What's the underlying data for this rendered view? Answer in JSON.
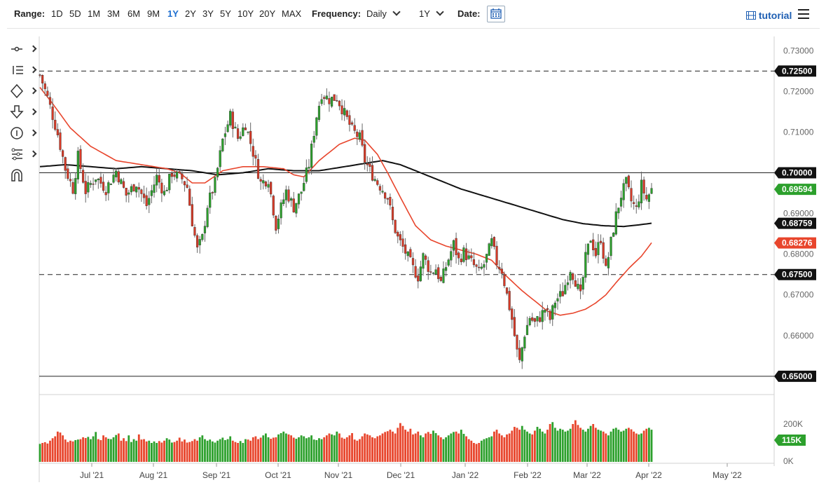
{
  "toolbar": {
    "range_label": "Range:",
    "ranges": [
      "1D",
      "5D",
      "1M",
      "3M",
      "6M",
      "9M",
      "1Y",
      "2Y",
      "3Y",
      "5Y",
      "10Y",
      "20Y",
      "MAX"
    ],
    "active_range": "1Y",
    "frequency_label": "Frequency:",
    "frequency_value": "Daily",
    "period_value": "1Y",
    "date_label": "Date:",
    "tutorial_label": "tutorial"
  },
  "tools": [
    "crosshair-tool",
    "line-tools",
    "shape-tools",
    "arrow-tool",
    "annotation-tool",
    "fibonacci-tool",
    "magnet-tool"
  ],
  "chart_data": {
    "type": "candlestick",
    "title": "",
    "ylim": [
      0.6455,
      0.7335
    ],
    "y_ticks": [
      "0.73000",
      "0.72000",
      "0.71000",
      "0.69000",
      "0.68000",
      "0.67000",
      "0.66000"
    ],
    "x_ticks": [
      "Jul '21",
      "Aug '21",
      "Sep '21",
      "Oct '21",
      "Nov '21",
      "Dec '21",
      "Jan '22",
      "Feb '22",
      "Mar '22",
      "Apr '22",
      "May '22"
    ],
    "horizontal_lines": [
      {
        "value": 0.725,
        "label": "0.72500",
        "style": "dashed"
      },
      {
        "value": 0.7,
        "label": "0.70000",
        "style": "solid"
      },
      {
        "value": 0.675,
        "label": "0.67500",
        "style": "dashed"
      },
      {
        "value": 0.65,
        "label": "0.65000",
        "style": "solid"
      }
    ],
    "last_price": {
      "value": 0.69594,
      "label": "0.69594",
      "color": "#2ca02c"
    },
    "sma200_last": {
      "value": 0.68759,
      "label": "0.68759",
      "color": "#111111"
    },
    "sma50_last": {
      "value": 0.68276,
      "label": "0.68276",
      "color": "#e8452c"
    },
    "price_path": [
      [
        0,
        0.724
      ],
      [
        3,
        0.7185
      ],
      [
        7,
        0.7095
      ],
      [
        10,
        0.701
      ],
      [
        13,
        0.696
      ],
      [
        15,
        0.704
      ],
      [
        18,
        0.6955
      ],
      [
        22,
        0.699
      ],
      [
        26,
        0.696
      ],
      [
        30,
        0.7005
      ],
      [
        34,
        0.6945
      ],
      [
        38,
        0.6975
      ],
      [
        42,
        0.692
      ],
      [
        46,
        0.699
      ],
      [
        49,
        0.695
      ],
      [
        52,
        0.7
      ],
      [
        56,
        0.6985
      ],
      [
        58,
        0.6965
      ],
      [
        60,
        0.688
      ],
      [
        62,
        0.681
      ],
      [
        64,
        0.684
      ],
      [
        66,
        0.692
      ],
      [
        69,
        0.6975
      ],
      [
        72,
        0.708
      ],
      [
        75,
        0.714
      ],
      [
        78,
        0.7085
      ],
      [
        81,
        0.712
      ],
      [
        84,
        0.705
      ],
      [
        87,
        0.6975
      ],
      [
        90,
        0.6985
      ],
      [
        93,
        0.687
      ],
      [
        95,
        0.6915
      ],
      [
        97,
        0.6955
      ],
      [
        100,
        0.6915
      ],
      [
        103,
        0.6955
      ],
      [
        106,
        0.702
      ],
      [
        109,
        0.714
      ],
      [
        111,
        0.7195
      ],
      [
        114,
        0.718
      ],
      [
        117,
        0.7185
      ],
      [
        120,
        0.7145
      ],
      [
        123,
        0.7105
      ],
      [
        126,
        0.7085
      ],
      [
        128,
        0.703
      ],
      [
        130,
        0.7005
      ],
      [
        133,
        0.6975
      ],
      [
        135,
        0.696
      ],
      [
        137,
        0.694
      ],
      [
        139,
        0.688
      ],
      [
        141,
        0.684
      ],
      [
        144,
        0.6805
      ],
      [
        147,
        0.6765
      ],
      [
        149,
        0.6745
      ],
      [
        151,
        0.6795
      ],
      [
        154,
        0.6755
      ],
      [
        156,
        0.6765
      ],
      [
        158,
        0.673
      ],
      [
        160,
        0.677
      ],
      [
        163,
        0.6825
      ],
      [
        165,
        0.6785
      ],
      [
        167,
        0.6805
      ],
      [
        170,
        0.678
      ],
      [
        173,
        0.6755
      ],
      [
        175,
        0.6775
      ],
      [
        178,
        0.683
      ],
      [
        180,
        0.678
      ],
      [
        182,
        0.676
      ],
      [
        184,
        0.67
      ],
      [
        186,
        0.664
      ],
      [
        188,
        0.656
      ],
      [
        189,
        0.6535
      ],
      [
        191,
        0.6605
      ],
      [
        193,
        0.6645
      ],
      [
        195,
        0.663
      ],
      [
        197,
        0.6645
      ],
      [
        199,
        0.6665
      ],
      [
        201,
        0.664
      ],
      [
        203,
        0.6685
      ],
      [
        206,
        0.6705
      ],
      [
        209,
        0.6765
      ],
      [
        211,
        0.6735
      ],
      [
        213,
        0.6695
      ],
      [
        215,
        0.679
      ],
      [
        217,
        0.684
      ],
      [
        219,
        0.68
      ],
      [
        221,
        0.684
      ],
      [
        223,
        0.676
      ],
      [
        225,
        0.683
      ],
      [
        227,
        0.6895
      ],
      [
        229,
        0.6945
      ],
      [
        231,
        0.6975
      ],
      [
        233,
        0.693
      ],
      [
        235,
        0.691
      ],
      [
        237,
        0.697
      ],
      [
        239,
        0.6935
      ],
      [
        241,
        0.6959
      ]
    ],
    "sma50_path": [
      [
        0,
        0.721
      ],
      [
        5,
        0.717
      ],
      [
        12,
        0.711
      ],
      [
        20,
        0.7065
      ],
      [
        30,
        0.703
      ],
      [
        40,
        0.702
      ],
      [
        50,
        0.701
      ],
      [
        55,
        0.7
      ],
      [
        60,
        0.6975
      ],
      [
        65,
        0.6975
      ],
      [
        72,
        0.7005
      ],
      [
        80,
        0.7015
      ],
      [
        88,
        0.7015
      ],
      [
        96,
        0.701
      ],
      [
        100,
        0.6995
      ],
      [
        104,
        0.699
      ],
      [
        110,
        0.703
      ],
      [
        118,
        0.707
      ],
      [
        124,
        0.7085
      ],
      [
        128,
        0.708
      ],
      [
        133,
        0.7045
      ],
      [
        137,
        0.7
      ],
      [
        142,
        0.694
      ],
      [
        148,
        0.687
      ],
      [
        154,
        0.6835
      ],
      [
        160,
        0.682
      ],
      [
        166,
        0.681
      ],
      [
        172,
        0.68
      ],
      [
        178,
        0.6785
      ],
      [
        184,
        0.6745
      ],
      [
        190,
        0.671
      ],
      [
        196,
        0.668
      ],
      [
        200,
        0.666
      ],
      [
        205,
        0.665
      ],
      [
        210,
        0.6655
      ],
      [
        215,
        0.6665
      ],
      [
        219,
        0.668
      ],
      [
        223,
        0.67
      ],
      [
        227,
        0.673
      ],
      [
        232,
        0.6765
      ],
      [
        237,
        0.6795
      ],
      [
        241,
        0.6828
      ]
    ],
    "sma200_path": [
      [
        0,
        0.7015
      ],
      [
        10,
        0.702
      ],
      [
        20,
        0.7015
      ],
      [
        30,
        0.701
      ],
      [
        40,
        0.7015
      ],
      [
        50,
        0.701
      ],
      [
        60,
        0.7005
      ],
      [
        70,
        0.6995
      ],
      [
        80,
        0.7
      ],
      [
        90,
        0.701
      ],
      [
        100,
        0.7005
      ],
      [
        110,
        0.7005
      ],
      [
        120,
        0.7015
      ],
      [
        130,
        0.7025
      ],
      [
        135,
        0.703
      ],
      [
        142,
        0.702
      ],
      [
        150,
        0.7
      ],
      [
        158,
        0.698
      ],
      [
        166,
        0.696
      ],
      [
        174,
        0.6945
      ],
      [
        182,
        0.693
      ],
      [
        190,
        0.6915
      ],
      [
        198,
        0.69
      ],
      [
        206,
        0.6885
      ],
      [
        214,
        0.6875
      ],
      [
        222,
        0.687
      ],
      [
        230,
        0.6868
      ],
      [
        236,
        0.6872
      ],
      [
        241,
        0.6876
      ]
    ],
    "volume": {
      "ylim": [
        0,
        300000
      ],
      "y_ticks": [
        "200K",
        "0K"
      ],
      "last_label": "115K",
      "last_value": 115000,
      "values": [
        95000,
        100000,
        104000,
        97000,
        112000,
        125000,
        135000,
        160000,
        155000,
        140000,
        118000,
        105000,
        112000,
        108000,
        115000,
        118000,
        120000,
        130000,
        126000,
        132000,
        120000,
        135000,
        158000,
        120000,
        115000,
        140000,
        130000,
        122000,
        120000,
        130000,
        142000,
        150000,
        112000,
        125000,
        110000,
        140000,
        105000,
        120000,
        112000,
        145000,
        118000,
        120000,
        108000,
        112000,
        100000,
        108000,
        100000,
        110000,
        102000,
        112000,
        125000,
        118000,
        102000,
        105000,
        112000,
        128000,
        108000,
        118000,
        102000,
        105000,
        110000,
        120000,
        112000,
        130000,
        140000,
        120000,
        112000,
        118000,
        108000,
        102000,
        112000,
        120000,
        128000,
        115000,
        120000,
        135000,
        112000,
        105000,
        100000,
        110000,
        100000,
        120000,
        118000,
        112000,
        130000,
        135000,
        120000,
        128000,
        140000,
        150000,
        130000,
        122000,
        128000,
        130000,
        145000,
        152000,
        160000,
        150000,
        145000,
        140000,
        128000,
        122000,
        130000,
        140000,
        135000,
        125000,
        130000,
        140000,
        118000,
        115000,
        125000,
        120000,
        130000,
        140000,
        150000,
        145000,
        140000,
        160000,
        150000,
        128000,
        122000,
        130000,
        140000,
        152000,
        118000,
        112000,
        120000,
        135000,
        150000,
        145000,
        140000,
        130000,
        125000,
        135000,
        140000,
        150000,
        158000,
        162000,
        170000,
        160000,
        150000,
        180000,
        205000,
        190000,
        170000,
        160000,
        175000,
        145000,
        150000,
        160000,
        140000,
        130000,
        150000,
        158000,
        148000,
        165000,
        152000,
        140000,
        130000,
        120000,
        130000,
        140000,
        150000,
        158000,
        160000,
        150000,
        170000,
        148000,
        135000,
        120000,
        112000,
        100000,
        95000,
        100000,
        112000,
        120000,
        125000,
        130000,
        135000,
        160000,
        170000,
        150000,
        140000,
        130000,
        145000,
        150000,
        165000,
        185000,
        180000,
        170000,
        190000,
        170000,
        160000,
        150000,
        145000,
        165000,
        185000,
        175000,
        160000,
        150000,
        170000,
        200000,
        210000,
        180000,
        165000,
        175000,
        170000,
        160000,
        165000,
        175000,
        200000,
        220000,
        195000,
        180000,
        170000,
        160000,
        175000,
        190000,
        200000,
        180000,
        170000,
        165000,
        160000,
        150000,
        140000,
        160000,
        175000,
        180000,
        170000,
        160000,
        165000,
        175000,
        180000,
        172000,
        160000,
        150000,
        145000,
        150000,
        165000,
        175000,
        180000,
        170000,
        160000,
        155000,
        115000
      ]
    }
  }
}
